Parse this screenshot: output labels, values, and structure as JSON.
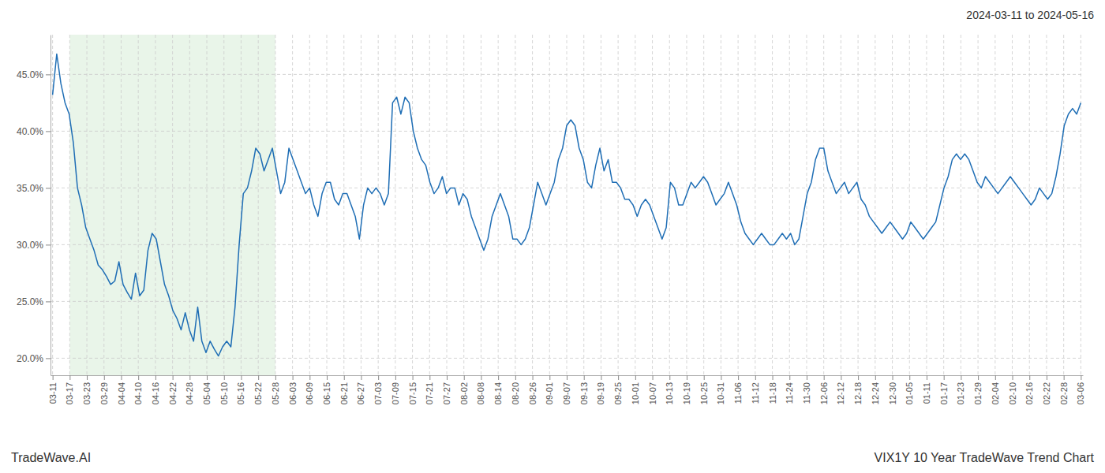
{
  "chart_data": {
    "type": "line",
    "title": "VIX1Y 10 Year TradeWave Trend Chart",
    "subtitle": "2024-03-11 to 2024-05-16",
    "annotations": [
      {
        "text": "TradeWave.AI"
      }
    ],
    "color": "#1f6eb5",
    "grid": true,
    "xlim": [
      -0.5,
      248.5
    ],
    "xticks": [
      {
        "value": 0,
        "label": "03-11"
      },
      {
        "value": 4.1333333333,
        "label": "03-17"
      },
      {
        "value": 8.2666666667,
        "label": "03-23"
      },
      {
        "value": 12.4,
        "label": "03-29"
      },
      {
        "value": 16.5333333333,
        "label": "04-04"
      },
      {
        "value": 20.6666666667,
        "label": "04-10"
      },
      {
        "value": 24.8,
        "label": "04-16"
      },
      {
        "value": 28.9333333333,
        "label": "04-22"
      },
      {
        "value": 33.0666666667,
        "label": "04-28"
      },
      {
        "value": 37.2,
        "label": "05-04"
      },
      {
        "value": 41.3333333333,
        "label": "05-10"
      },
      {
        "value": 45.4666666667,
        "label": "05-16"
      },
      {
        "value": 49.6,
        "label": "05-22"
      },
      {
        "value": 53.7333333333,
        "label": "05-28"
      },
      {
        "value": 57.8666666667,
        "label": "06-03"
      },
      {
        "value": 62,
        "label": "06-09"
      },
      {
        "value": 66.1333333333,
        "label": "06-15"
      },
      {
        "value": 70.2666666667,
        "label": "06-21"
      },
      {
        "value": 74.4,
        "label": "06-27"
      },
      {
        "value": 78.5333333333,
        "label": "07-03"
      },
      {
        "value": 82.6666666667,
        "label": "07-09"
      },
      {
        "value": 86.8,
        "label": "07-15"
      },
      {
        "value": 90.9333333333,
        "label": "07-21"
      },
      {
        "value": 95.0666666667,
        "label": "07-27"
      },
      {
        "value": 99.2,
        "label": "08-02"
      },
      {
        "value": 103.3333333333,
        "label": "08-08"
      },
      {
        "value": 107.4666666667,
        "label": "08-14"
      },
      {
        "value": 111.6,
        "label": "08-20"
      },
      {
        "value": 115.7333333333,
        "label": "08-26"
      },
      {
        "value": 119.8666666667,
        "label": "09-01"
      },
      {
        "value": 124,
        "label": "09-07"
      },
      {
        "value": 128.1333333333,
        "label": "09-13"
      },
      {
        "value": 132.2666666667,
        "label": "09-19"
      },
      {
        "value": 136.4,
        "label": "09-25"
      },
      {
        "value": 140.5333333333,
        "label": "10-01"
      },
      {
        "value": 144.6666666667,
        "label": "10-07"
      },
      {
        "value": 148.8,
        "label": "10-13"
      },
      {
        "value": 152.9333333333,
        "label": "10-19"
      },
      {
        "value": 157.0666666667,
        "label": "10-25"
      },
      {
        "value": 161.2,
        "label": "10-31"
      },
      {
        "value": 165.3333333333,
        "label": "11-06"
      },
      {
        "value": 169.4666666667,
        "label": "11-12"
      },
      {
        "value": 173.6,
        "label": "11-18"
      },
      {
        "value": 177.7333333333,
        "label": "11-24"
      },
      {
        "value": 181.8666666667,
        "label": "11-30"
      },
      {
        "value": 186,
        "label": "12-06"
      },
      {
        "value": 190.1333333333,
        "label": "12-12"
      },
      {
        "value": 194.2666666667,
        "label": "12-18"
      },
      {
        "value": 198.4,
        "label": "12-24"
      },
      {
        "value": 202.5333333333,
        "label": "12-30"
      },
      {
        "value": 206.6666666667,
        "label": "01-05"
      },
      {
        "value": 210.8,
        "label": "01-11"
      },
      {
        "value": 214.9333333333,
        "label": "01-17"
      },
      {
        "value": 219.0666666667,
        "label": "01-23"
      },
      {
        "value": 223.2,
        "label": "01-29"
      },
      {
        "value": 227.3333333333,
        "label": "02-04"
      },
      {
        "value": 231.4666666667,
        "label": "02-10"
      },
      {
        "value": 235.6,
        "label": "02-16"
      },
      {
        "value": 239.7333333333,
        "label": "02-22"
      },
      {
        "value": 243.8666666667,
        "label": "02-28"
      },
      {
        "value": 248,
        "label": "03-06"
      }
    ],
    "ylim": [
      18.5,
      48.5
    ],
    "yticks": [
      {
        "value": 20.0,
        "label": "20.0%"
      },
      {
        "value": 25.0,
        "label": "25.0%"
      },
      {
        "value": 30.0,
        "label": "30.0%"
      },
      {
        "value": 35.0,
        "label": "35.0%"
      },
      {
        "value": 40.0,
        "label": "40.0%"
      },
      {
        "value": 45.0,
        "label": "45.0%"
      }
    ],
    "shaded_region": {
      "from": 4.1333333333,
      "to": 53.7333333333,
      "color": "#d4ecd4"
    },
    "values": [
      43.2,
      46.8,
      44.2,
      42.5,
      41.5,
      39.0,
      35.0,
      33.5,
      31.5,
      30.5,
      29.5,
      28.2,
      27.8,
      27.2,
      26.5,
      26.8,
      28.5,
      26.5,
      25.8,
      25.2,
      27.5,
      25.5,
      26.0,
      29.5,
      31.0,
      30.5,
      28.5,
      26.5,
      25.5,
      24.2,
      23.5,
      22.5,
      24.0,
      22.5,
      21.5,
      24.5,
      21.5,
      20.5,
      21.5,
      20.8,
      20.2,
      21.0,
      21.5,
      21.0,
      24.5,
      30.0,
      34.5,
      35.0,
      36.5,
      38.5,
      38.0,
      36.5,
      37.5,
      38.5,
      36.5,
      34.5,
      35.5,
      38.5,
      37.5,
      36.5,
      35.5,
      34.5,
      35.0,
      33.5,
      32.5,
      34.5,
      35.5,
      35.5,
      34.0,
      33.5,
      34.5,
      34.5,
      33.5,
      32.5,
      30.5,
      33.5,
      35.0,
      34.5,
      35.0,
      34.5,
      33.5,
      34.5,
      42.5,
      43.0,
      41.5,
      43.0,
      42.5,
      40.0,
      38.5,
      37.5,
      37.0,
      35.5,
      34.5,
      35.0,
      36.0,
      34.5,
      35.0,
      35.0,
      33.5,
      34.5,
      34.0,
      32.5,
      31.5,
      30.5,
      29.5,
      30.5,
      32.5,
      33.5,
      34.5,
      33.5,
      32.5,
      30.5,
      30.5,
      30.0,
      30.5,
      31.5,
      33.5,
      35.5,
      34.5,
      33.5,
      34.5,
      35.5,
      37.5,
      38.5,
      40.5,
      41.0,
      40.5,
      38.5,
      37.5,
      35.5,
      35.0,
      37.0,
      38.5,
      36.5,
      37.5,
      35.5,
      35.5,
      35.0,
      34.0,
      34.0,
      33.5,
      32.5,
      33.5,
      34.0,
      33.5,
      32.5,
      31.5,
      30.5,
      31.5,
      35.5,
      35.0,
      33.5,
      33.5,
      34.5,
      35.5,
      35.0,
      35.5,
      36.0,
      35.5,
      34.5,
      33.5,
      34.0,
      34.5,
      35.5,
      34.5,
      33.5,
      32.0,
      31.0,
      30.5,
      30.0,
      30.5,
      31.0,
      30.5,
      30.0,
      30.0,
      30.5,
      31.0,
      30.5,
      31.0,
      30.0,
      30.5,
      32.5,
      34.5,
      35.5,
      37.5,
      38.5,
      38.5,
      36.5,
      35.5,
      34.5,
      35.0,
      35.5,
      34.5,
      35.0,
      35.5,
      34.0,
      33.5,
      32.5,
      32.0,
      31.5,
      31.0,
      31.5,
      32.0,
      31.5,
      31.0,
      30.5,
      31.0,
      32.0,
      31.5,
      31.0,
      30.5,
      31.0,
      31.5,
      32.0,
      33.5,
      35.0,
      36.0,
      37.5,
      38.0,
      37.5,
      38.0,
      37.5,
      36.5,
      35.5,
      35.0,
      36.0,
      35.5,
      35.0,
      34.5,
      35.0,
      35.5,
      36.0,
      35.5,
      35.0,
      34.5,
      34.0,
      33.5,
      34.0,
      35.0,
      34.5,
      34.0,
      34.5,
      36.0,
      38.0,
      40.5,
      41.5,
      42.0,
      41.5,
      42.5
    ]
  }
}
